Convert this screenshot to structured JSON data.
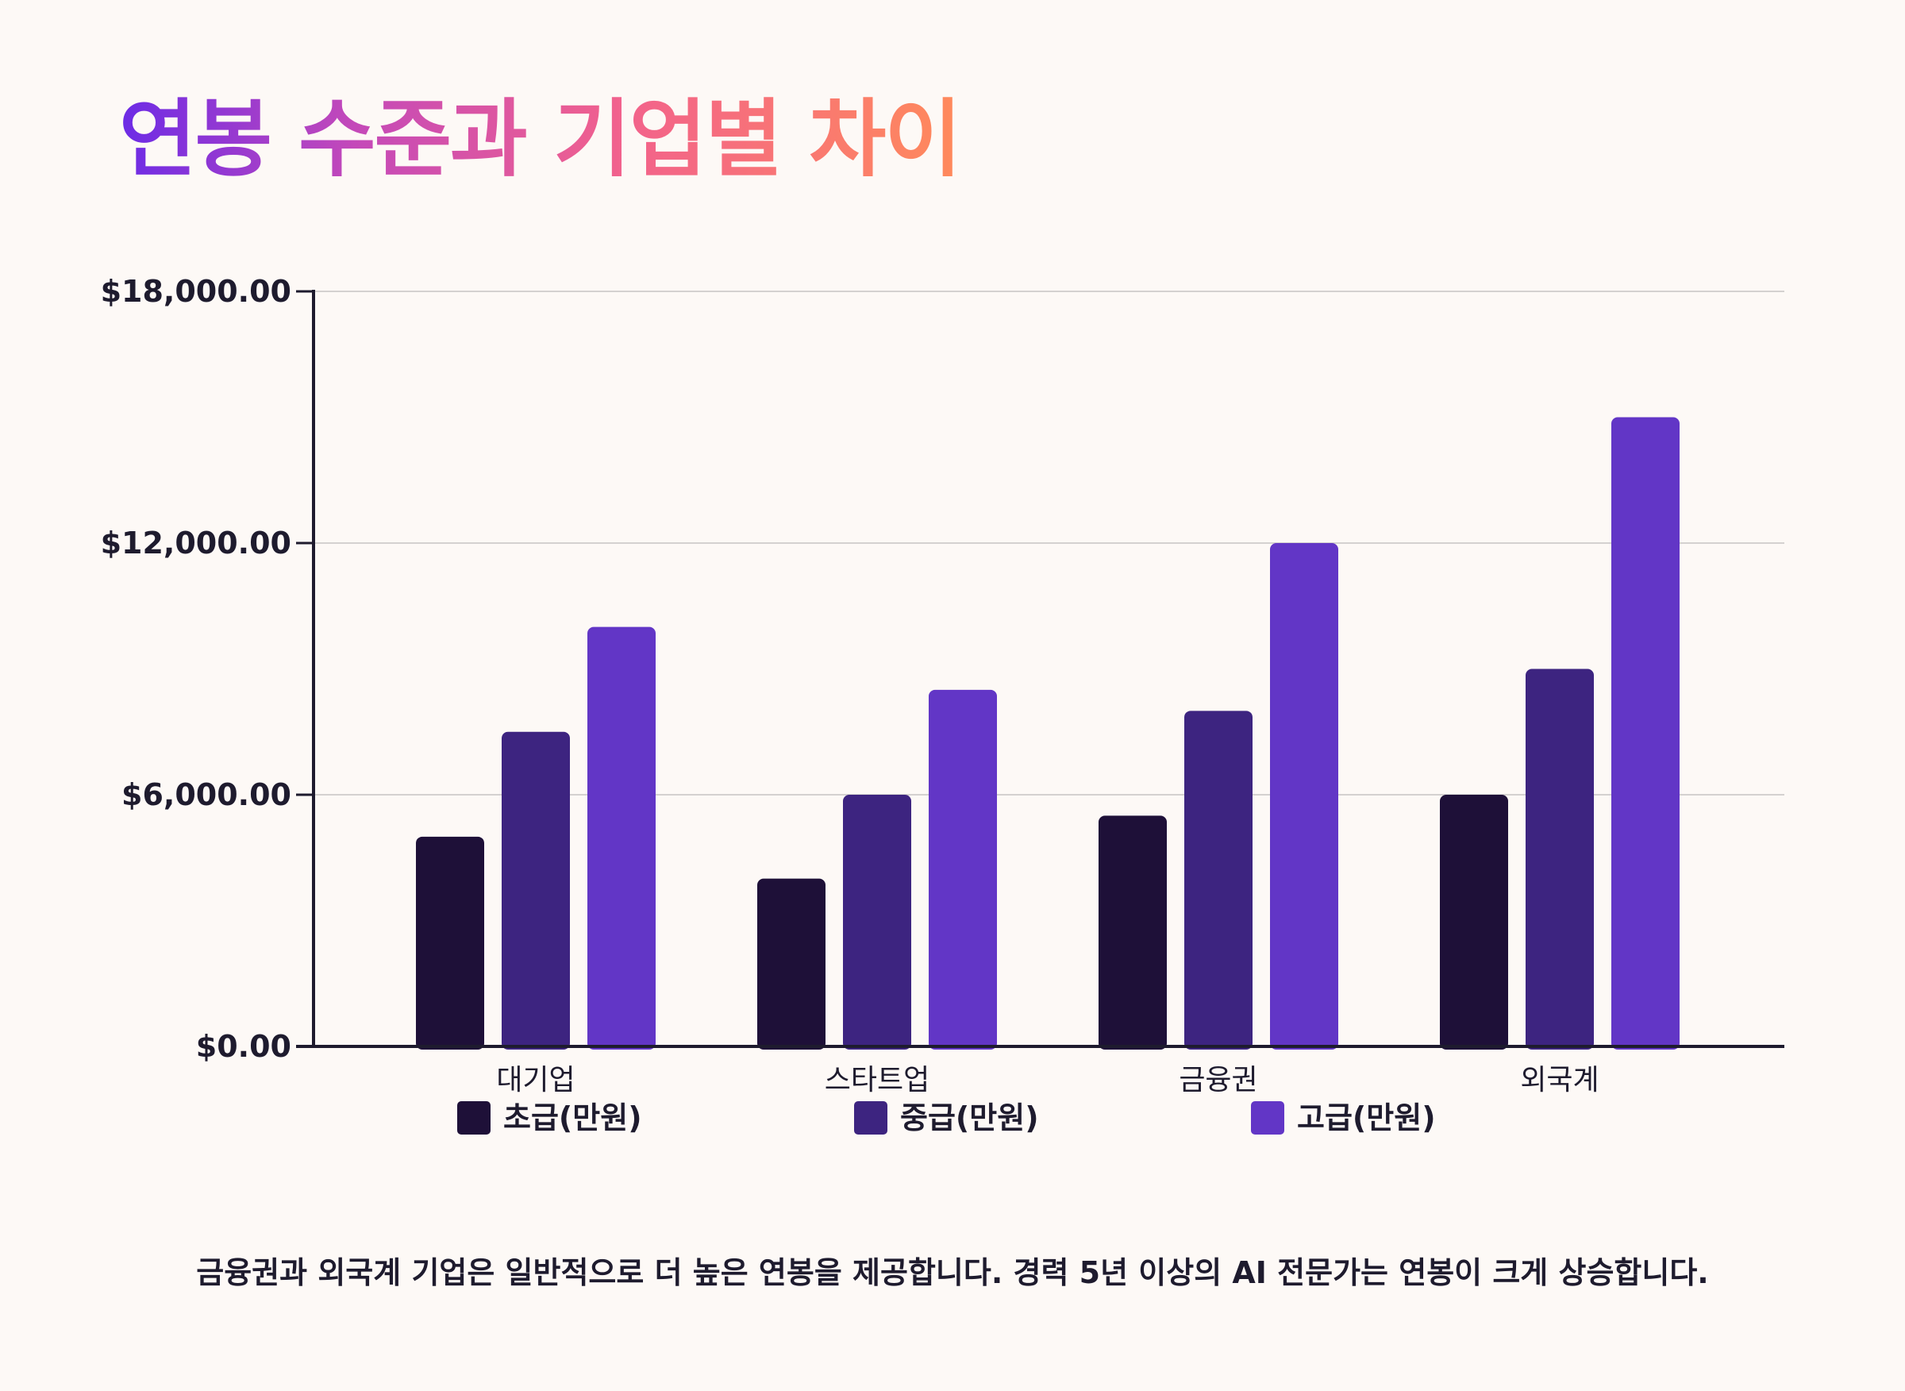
{
  "title": "연봉 수준과 기업별 차이",
  "footnote": "금융권과 외국계 기업은 일반적으로 더 높은 연봉을 제공합니다. 경력 5년 이상의 AI 전문가는 연봉이 크게 상승합니다.",
  "colors": {
    "title_gradient": [
      "#6c2be6",
      "#c449b9",
      "#f2628c",
      "#ff8a5b"
    ],
    "axis": "#1e1b2e",
    "grid": "#d4d1d0",
    "background": "#fdf9f6"
  },
  "chart_data": {
    "type": "bar",
    "categories": [
      "대기업",
      "스타트업",
      "금융권",
      "외국계"
    ],
    "series": [
      {
        "name": "초급(만원)",
        "values": [
          5000,
          4000,
          5500,
          6000
        ],
        "color": "#1e1038"
      },
      {
        "name": "중급(만원)",
        "values": [
          7500,
          6000,
          8000,
          9000
        ],
        "color": "#3d2480"
      },
      {
        "name": "고급(만원)",
        "values": [
          10000,
          8500,
          12000,
          15000
        ],
        "color": "#6236c6"
      }
    ],
    "yticks": [
      0,
      6000,
      12000,
      18000
    ],
    "ytick_labels": [
      "$0.00",
      "$6,000.00",
      "$12,000.00",
      "$18,000.00"
    ],
    "ylim": [
      0,
      18000
    ],
    "grid": true,
    "legend_position": "bottom"
  }
}
